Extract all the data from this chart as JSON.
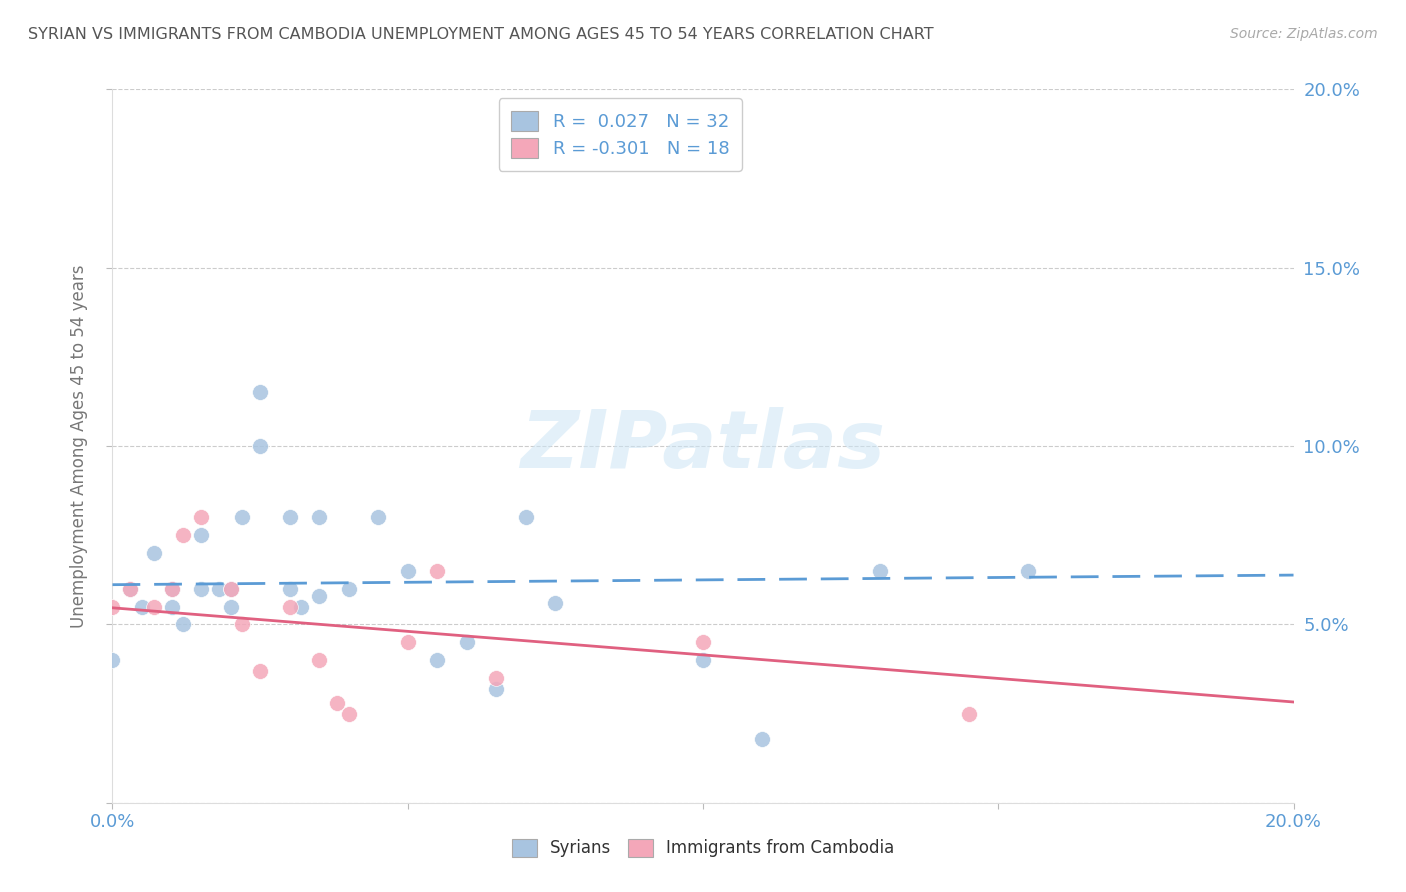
{
  "title": "SYRIAN VS IMMIGRANTS FROM CAMBODIA UNEMPLOYMENT AMONG AGES 45 TO 54 YEARS CORRELATION CHART",
  "source": "Source: ZipAtlas.com",
  "ylabel": "Unemployment Among Ages 45 to 54 years",
  "xlabel": "",
  "xlim": [
    0.0,
    0.2
  ],
  "ylim": [
    0.0,
    0.2
  ],
  "x_ticks": [
    0.0,
    0.05,
    0.1,
    0.15,
    0.2
  ],
  "y_ticks": [
    0.05,
    0.1,
    0.15,
    0.2
  ],
  "x_tick_labels": [
    "0.0%",
    "",
    "",
    "",
    "20.0%"
  ],
  "y_tick_labels_right": [
    "5.0%",
    "10.0%",
    "15.0%",
    "20.0%"
  ],
  "watermark": "ZIPatlas",
  "syrian_color": "#a8c4e0",
  "cambodia_color": "#f4a7b9",
  "syrian_line_color": "#5b9bd5",
  "cambodia_line_color": "#e06080",
  "R_syrian": 0.027,
  "N_syrian": 32,
  "R_cambodia": -0.301,
  "N_cambodia": 18,
  "syrian_x": [
    0.0,
    0.003,
    0.005,
    0.007,
    0.01,
    0.01,
    0.012,
    0.015,
    0.015,
    0.018,
    0.02,
    0.02,
    0.022,
    0.025,
    0.025,
    0.03,
    0.03,
    0.032,
    0.035,
    0.035,
    0.04,
    0.045,
    0.05,
    0.055,
    0.06,
    0.065,
    0.07,
    0.075,
    0.1,
    0.11,
    0.13,
    0.155
  ],
  "syrian_y": [
    0.04,
    0.06,
    0.055,
    0.07,
    0.06,
    0.055,
    0.05,
    0.06,
    0.075,
    0.06,
    0.055,
    0.06,
    0.08,
    0.1,
    0.115,
    0.06,
    0.08,
    0.055,
    0.058,
    0.08,
    0.06,
    0.08,
    0.065,
    0.04,
    0.045,
    0.032,
    0.08,
    0.056,
    0.04,
    0.018,
    0.065,
    0.065
  ],
  "cambodia_x": [
    0.0,
    0.003,
    0.007,
    0.01,
    0.012,
    0.015,
    0.02,
    0.022,
    0.025,
    0.03,
    0.035,
    0.038,
    0.04,
    0.05,
    0.055,
    0.065,
    0.1,
    0.145
  ],
  "cambodia_y": [
    0.055,
    0.06,
    0.055,
    0.06,
    0.075,
    0.08,
    0.06,
    0.05,
    0.037,
    0.055,
    0.04,
    0.028,
    0.025,
    0.045,
    0.065,
    0.035,
    0.045,
    0.025
  ],
  "background_color": "#ffffff",
  "grid_color": "#cccccc",
  "title_color": "#555555",
  "axis_tick_color": "#5b9bd5",
  "legend_r_color": "#5b9bd5"
}
